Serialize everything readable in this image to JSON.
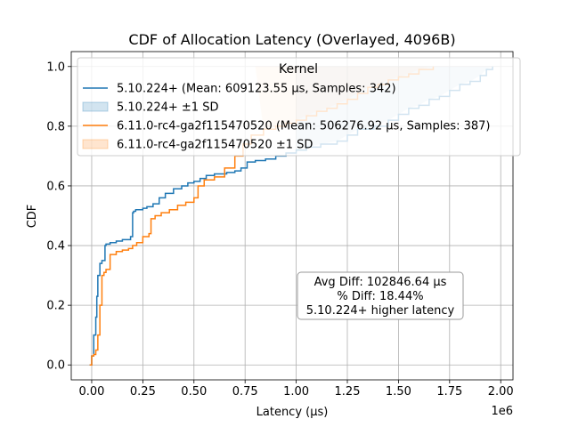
{
  "chart_data": {
    "type": "line",
    "title": "CDF of Allocation Latency (Overlayed, 4096B)",
    "xlabel": "Latency (µs)",
    "ylabel": "CDF",
    "x_offset_label": "1e6",
    "xlim": [
      -0.1,
      2.06
    ],
    "ylim": [
      -0.05,
      1.05
    ],
    "x_ticks": [
      0.0,
      0.25,
      0.5,
      0.75,
      1.0,
      1.25,
      1.5,
      1.75,
      2.0
    ],
    "x_tick_labels": [
      "0.00",
      "0.25",
      "0.50",
      "0.75",
      "1.00",
      "1.25",
      "1.50",
      "1.75",
      "2.00"
    ],
    "y_ticks": [
      0.0,
      0.2,
      0.4,
      0.6,
      0.8,
      1.0
    ],
    "y_tick_labels": [
      "0.0",
      "0.2",
      "0.4",
      "0.6",
      "0.8",
      "1.0"
    ],
    "grid": true,
    "legend": {
      "title": "Kernel",
      "placement": "top-left",
      "entries": [
        {
          "label": "5.10.224+ (Mean: 609123.55 µs, Samples: 342)",
          "kind": "line",
          "color": "#1f77b4"
        },
        {
          "label": "5.10.224+ ±1 SD",
          "kind": "patch",
          "color": "#1f77b4"
        },
        {
          "label": "6.11.0-rc4-ga2f115470520 (Mean: 506276.92 µs, Samples: 387)",
          "kind": "line",
          "color": "#ff7f0e"
        },
        {
          "label": "6.11.0-rc4-ga2f115470520 ±1 SD",
          "kind": "patch",
          "color": "#ff7f0e"
        }
      ]
    },
    "annotation": {
      "lines": [
        "Avg Diff: 102846.64 µs",
        "% Diff: 18.44%",
        "5.10.224+ higher latency"
      ],
      "placement": "lower-right"
    },
    "series": [
      {
        "name": "5.10.224+",
        "color": "#1f77b4",
        "x": [
          -0.01,
          0.0,
          0.01,
          0.02,
          0.025,
          0.03,
          0.04,
          0.05,
          0.06,
          0.065,
          0.07,
          0.08,
          0.09,
          0.12,
          0.15,
          0.17,
          0.19,
          0.2,
          0.205,
          0.215,
          0.25,
          0.27,
          0.3,
          0.33,
          0.36,
          0.4,
          0.44,
          0.47,
          0.5,
          0.53,
          0.56,
          0.6,
          0.66,
          0.7,
          0.73,
          0.76,
          0.8,
          0.85,
          0.9,
          0.95,
          1.0,
          1.05,
          1.12,
          1.2,
          1.25,
          1.3,
          1.38,
          1.45,
          1.5,
          1.55,
          1.6,
          1.65,
          1.7,
          1.75,
          1.8,
          1.85,
          1.9,
          1.93,
          1.96
        ],
        "y": [
          0.0,
          0.03,
          0.1,
          0.16,
          0.23,
          0.3,
          0.34,
          0.35,
          0.35,
          0.4,
          0.405,
          0.405,
          0.41,
          0.415,
          0.42,
          0.42,
          0.43,
          0.51,
          0.515,
          0.52,
          0.525,
          0.53,
          0.54,
          0.56,
          0.575,
          0.59,
          0.6,
          0.61,
          0.615,
          0.625,
          0.635,
          0.64,
          0.645,
          0.65,
          0.66,
          0.68,
          0.685,
          0.69,
          0.7,
          0.71,
          0.72,
          0.73,
          0.74,
          0.75,
          0.77,
          0.79,
          0.8,
          0.82,
          0.84,
          0.86,
          0.87,
          0.89,
          0.9,
          0.92,
          0.94,
          0.95,
          0.97,
          0.99,
          1.0
        ]
      },
      {
        "name": "6.11.0-rc4-ga2f115470520",
        "color": "#ff7f0e",
        "x": [
          -0.01,
          0.0,
          0.01,
          0.02,
          0.03,
          0.04,
          0.05,
          0.06,
          0.07,
          0.09,
          0.12,
          0.15,
          0.18,
          0.2,
          0.22,
          0.25,
          0.28,
          0.29,
          0.31,
          0.34,
          0.38,
          0.42,
          0.46,
          0.5,
          0.52,
          0.55,
          0.6,
          0.65,
          0.7,
          0.74,
          0.78,
          0.84,
          0.9,
          0.95,
          1.0,
          1.05,
          1.1,
          1.15,
          1.2,
          1.25,
          1.3,
          1.35,
          1.4,
          1.45,
          1.5,
          1.55,
          1.6,
          1.67
        ],
        "y": [
          0.0,
          0.03,
          0.035,
          0.05,
          0.1,
          0.2,
          0.3,
          0.31,
          0.32,
          0.37,
          0.38,
          0.385,
          0.39,
          0.4,
          0.41,
          0.43,
          0.44,
          0.49,
          0.5,
          0.51,
          0.52,
          0.535,
          0.545,
          0.56,
          0.6,
          0.62,
          0.63,
          0.66,
          0.7,
          0.74,
          0.77,
          0.79,
          0.8,
          0.81,
          0.82,
          0.835,
          0.85,
          0.86,
          0.875,
          0.89,
          0.91,
          0.93,
          0.94,
          0.955,
          0.965,
          0.975,
          0.99,
          1.0
        ]
      }
    ],
    "bands": [
      {
        "name": "5.10.224+ ±1 SD",
        "color": "#1f77b4",
        "x_start": 0.0,
        "x_end": 1.97,
        "rises_after": 1.0
      },
      {
        "name": "6.11.0-rc4-ga2f115470520 ±1 SD",
        "color": "#ff7f0e",
        "x_start": 0.0,
        "x_end": 1.67,
        "rises_after": 0.8
      }
    ]
  }
}
